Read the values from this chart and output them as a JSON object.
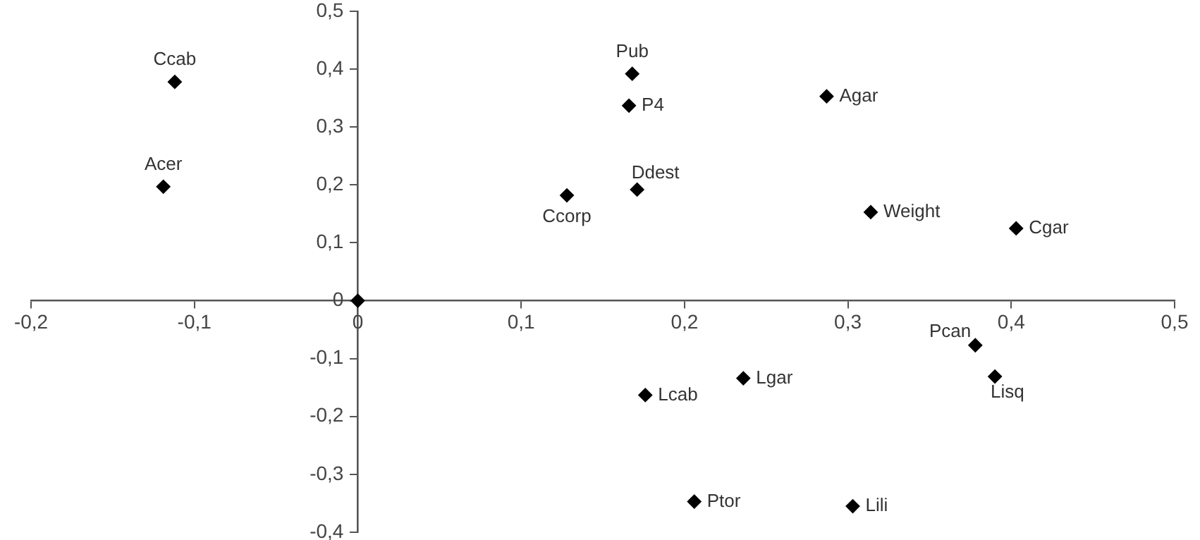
{
  "chart_data": {
    "type": "scatter",
    "marker": "diamond",
    "grid": false,
    "legend": false,
    "xlim": [
      -0.2,
      0.5
    ],
    "ylim": [
      -0.4,
      0.5
    ],
    "xticks": [
      {
        "value": -0.2,
        "label": "-0,2"
      },
      {
        "value": -0.1,
        "label": "-0,1"
      },
      0,
      {
        "value": 0.1,
        "label": "0,1"
      },
      {
        "value": 0.2,
        "label": "0,2"
      },
      {
        "value": 0.3,
        "label": "0,3"
      },
      {
        "value": 0.4,
        "label": "0,4"
      },
      {
        "value": 0.5,
        "label": "0,5"
      }
    ],
    "yticks": [
      {
        "value": -0.4,
        "label": "-0,4"
      },
      {
        "value": -0.3,
        "label": "-0,3"
      },
      {
        "value": -0.2,
        "label": "-0,2"
      },
      {
        "value": -0.1,
        "label": "-0,1"
      },
      0,
      {
        "value": 0.1,
        "label": "0,1"
      },
      {
        "value": 0.2,
        "label": "0,2"
      },
      {
        "value": 0.3,
        "label": "0,3"
      },
      {
        "value": 0.4,
        "label": "0,4"
      },
      {
        "value": 0.5,
        "label": "0,5"
      }
    ],
    "series": [
      {
        "color": "#000000",
        "x": [
          -0.112,
          -0.119,
          0.128,
          0.168,
          0.166,
          0.287,
          0.171,
          0.314,
          0.403,
          0.378,
          0.39,
          0.236,
          0.176,
          0.206,
          0.303,
          0
        ],
        "values": [
          0.378,
          0.197,
          0.182,
          0.392,
          0.337,
          0.353,
          0.192,
          0.153,
          0.125,
          -0.077,
          -0.131,
          -0.134,
          -0.163,
          -0.347,
          -0.355,
          0
        ]
      }
    ],
    "annotations": [
      {
        "text": "Ccab",
        "x": -0.112,
        "y": 0.378
      },
      {
        "text": "Acer",
        "x": -0.119,
        "y": 0.197
      },
      {
        "text": "Ccorp",
        "x": 0.128,
        "y": 0.182
      },
      {
        "text": "Pub",
        "x": 0.168,
        "y": 0.392
      },
      {
        "text": "P4",
        "x": 0.166,
        "y": 0.337
      },
      {
        "text": "Agar",
        "x": 0.287,
        "y": 0.353
      },
      {
        "text": "Ddest",
        "x": 0.171,
        "y": 0.192
      },
      {
        "text": "Weight",
        "x": 0.314,
        "y": 0.153
      },
      {
        "text": "Cgar",
        "x": 0.403,
        "y": 0.125
      },
      {
        "text": "Pcan",
        "x": 0.378,
        "y": -0.077
      },
      {
        "text": "Lisq",
        "x": 0.39,
        "y": -0.131
      },
      {
        "text": "Lgar",
        "x": 0.236,
        "y": -0.134
      },
      {
        "text": "Lcab",
        "x": 0.176,
        "y": -0.163
      },
      {
        "text": "Ptor",
        "x": 0.206,
        "y": -0.347
      },
      {
        "text": "Lili",
        "x": 0.303,
        "y": -0.355
      }
    ]
  }
}
